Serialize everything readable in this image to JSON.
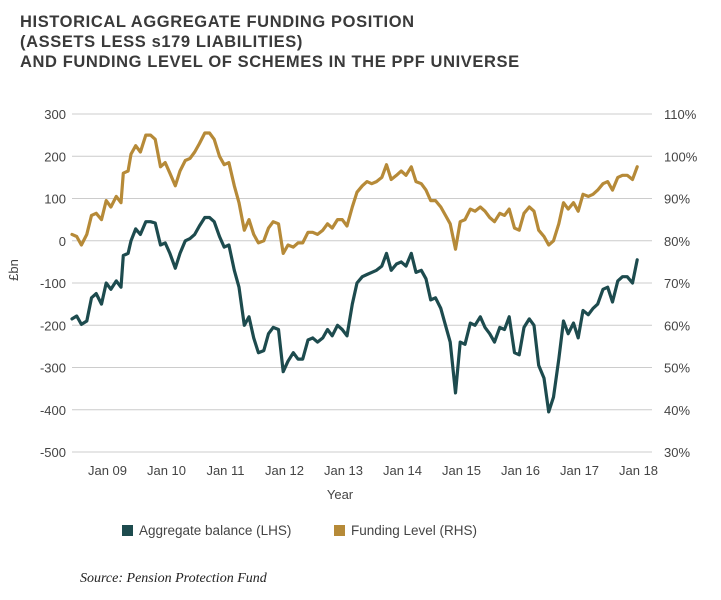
{
  "header": {
    "title_lines": [
      "HISTORICAL AGGREGATE FUNDING POSITION",
      "(ASSETS LESS s179 LIABILITIES)",
      "AND FUNDING LEVEL OF SCHEMES IN THE PPF UNIVERSE"
    ]
  },
  "source": "Source: Pension Protection Fund",
  "colors": {
    "balance": "#1d4b4e",
    "funding": "#b68a38",
    "grid": "#cccccc"
  },
  "chart_data": {
    "type": "line",
    "title": "HISTORICAL AGGREGATE FUNDING POSITION (ASSETS LESS s179 LIABILITIES) AND FUNDING LEVEL OF SCHEMES IN THE PPF UNIVERSE",
    "xlabel": "Year",
    "ylabel": "£bn",
    "x_ticks": [
      "Jan 09",
      "Jan 10",
      "Jan 11",
      "Jan 12",
      "Jan 13",
      "Jan 14",
      "Jan 15",
      "Jan 16",
      "Jan 17",
      "Jan 18"
    ],
    "x_range": [
      2008.5,
      2018.33
    ],
    "y_left": {
      "min": -500,
      "max": 300,
      "ticks": [
        "300",
        "200",
        "100",
        "0",
        "-100",
        "-200",
        "-300",
        "-400",
        "-500"
      ]
    },
    "y_right": {
      "min": 30,
      "max": 110,
      "ticks": [
        "110%",
        "100%",
        "90%",
        "80%",
        "70%",
        "60%",
        "50%",
        "40%",
        "30%"
      ]
    },
    "grid": true,
    "legend_position": "bottom",
    "series": [
      {
        "name": "Aggregate balance (LHS)",
        "axis": "left",
        "points": [
          [
            2008.5,
            -185
          ],
          [
            2008.58,
            -178
          ],
          [
            2008.66,
            -198
          ],
          [
            2008.75,
            -190
          ],
          [
            2008.83,
            -135
          ],
          [
            2008.91,
            -125
          ],
          [
            2009.0,
            -150
          ],
          [
            2009.08,
            -100
          ],
          [
            2009.16,
            -115
          ],
          [
            2009.25,
            -95
          ],
          [
            2009.33,
            -110
          ],
          [
            2009.37,
            -35
          ],
          [
            2009.45,
            -30
          ],
          [
            2009.5,
            0
          ],
          [
            2009.58,
            28
          ],
          [
            2009.66,
            15
          ],
          [
            2009.75,
            45
          ],
          [
            2009.83,
            45
          ],
          [
            2009.91,
            42
          ],
          [
            2010.0,
            -10
          ],
          [
            2010.08,
            -5
          ],
          [
            2010.16,
            -30
          ],
          [
            2010.25,
            -65
          ],
          [
            2010.33,
            -30
          ],
          [
            2010.42,
            0
          ],
          [
            2010.5,
            5
          ],
          [
            2010.58,
            15
          ],
          [
            2010.66,
            35
          ],
          [
            2010.75,
            55
          ],
          [
            2010.83,
            55
          ],
          [
            2010.91,
            45
          ],
          [
            2011.0,
            10
          ],
          [
            2011.08,
            -15
          ],
          [
            2011.16,
            -10
          ],
          [
            2011.25,
            -70
          ],
          [
            2011.33,
            -110
          ],
          [
            2011.42,
            -200
          ],
          [
            2011.5,
            -180
          ],
          [
            2011.58,
            -230
          ],
          [
            2011.66,
            -265
          ],
          [
            2011.75,
            -260
          ],
          [
            2011.83,
            -220
          ],
          [
            2011.91,
            -205
          ],
          [
            2012.0,
            -210
          ],
          [
            2012.08,
            -310
          ],
          [
            2012.16,
            -285
          ],
          [
            2012.25,
            -265
          ],
          [
            2012.33,
            -280
          ],
          [
            2012.41,
            -280
          ],
          [
            2012.5,
            -235
          ],
          [
            2012.58,
            -230
          ],
          [
            2012.66,
            -240
          ],
          [
            2012.75,
            -230
          ],
          [
            2012.83,
            -210
          ],
          [
            2012.91,
            -225
          ],
          [
            2013.0,
            -200
          ],
          [
            2013.08,
            -210
          ],
          [
            2013.16,
            -225
          ],
          [
            2013.25,
            -150
          ],
          [
            2013.33,
            -100
          ],
          [
            2013.42,
            -85
          ],
          [
            2013.5,
            -80
          ],
          [
            2013.58,
            -75
          ],
          [
            2013.66,
            -70
          ],
          [
            2013.75,
            -60
          ],
          [
            2013.83,
            -30
          ],
          [
            2013.91,
            -70
          ],
          [
            2014.0,
            -55
          ],
          [
            2014.08,
            -50
          ],
          [
            2014.16,
            -60
          ],
          [
            2014.25,
            -30
          ],
          [
            2014.33,
            -75
          ],
          [
            2014.42,
            -70
          ],
          [
            2014.5,
            -90
          ],
          [
            2014.58,
            -140
          ],
          [
            2014.66,
            -135
          ],
          [
            2014.75,
            -160
          ],
          [
            2014.83,
            -200
          ],
          [
            2014.91,
            -240
          ],
          [
            2015.0,
            -360
          ],
          [
            2015.08,
            -240
          ],
          [
            2015.16,
            -245
          ],
          [
            2015.25,
            -195
          ],
          [
            2015.33,
            -200
          ],
          [
            2015.42,
            -180
          ],
          [
            2015.5,
            -205
          ],
          [
            2015.58,
            -220
          ],
          [
            2015.66,
            -240
          ],
          [
            2015.75,
            -205
          ],
          [
            2015.83,
            -210
          ],
          [
            2015.91,
            -180
          ],
          [
            2016.0,
            -265
          ],
          [
            2016.08,
            -270
          ],
          [
            2016.16,
            -205
          ],
          [
            2016.25,
            -185
          ],
          [
            2016.33,
            -200
          ],
          [
            2016.41,
            -295
          ],
          [
            2016.5,
            -325
          ],
          [
            2016.58,
            -405
          ],
          [
            2016.66,
            -370
          ],
          [
            2016.75,
            -280
          ],
          [
            2016.83,
            -190
          ],
          [
            2016.91,
            -220
          ],
          [
            2017.0,
            -195
          ],
          [
            2017.08,
            -230
          ],
          [
            2017.16,
            -165
          ],
          [
            2017.25,
            -175
          ],
          [
            2017.33,
            -160
          ],
          [
            2017.41,
            -150
          ],
          [
            2017.5,
            -115
          ],
          [
            2017.58,
            -110
          ],
          [
            2017.66,
            -145
          ],
          [
            2017.75,
            -95
          ],
          [
            2017.83,
            -85
          ],
          [
            2017.91,
            -85
          ],
          [
            2018.0,
            -100
          ],
          [
            2018.08,
            -45
          ]
        ]
      },
      {
        "name": "Funding Level (RHS)",
        "axis": "right",
        "points": [
          [
            2008.5,
            81.5
          ],
          [
            2008.58,
            81.0
          ],
          [
            2008.66,
            79.0
          ],
          [
            2008.75,
            81.5
          ],
          [
            2008.83,
            86.0
          ],
          [
            2008.91,
            86.5
          ],
          [
            2009.0,
            85.0
          ],
          [
            2009.08,
            89.5
          ],
          [
            2009.16,
            88.0
          ],
          [
            2009.25,
            90.5
          ],
          [
            2009.33,
            89.0
          ],
          [
            2009.37,
            96.0
          ],
          [
            2009.45,
            96.5
          ],
          [
            2009.5,
            100.5
          ],
          [
            2009.58,
            102.5
          ],
          [
            2009.66,
            101.0
          ],
          [
            2009.75,
            105.0
          ],
          [
            2009.83,
            105.0
          ],
          [
            2009.91,
            104.0
          ],
          [
            2010.0,
            97.5
          ],
          [
            2010.08,
            98.5
          ],
          [
            2010.16,
            96.0
          ],
          [
            2010.25,
            93.0
          ],
          [
            2010.33,
            96.5
          ],
          [
            2010.42,
            99.0
          ],
          [
            2010.5,
            99.5
          ],
          [
            2010.58,
            101.0
          ],
          [
            2010.66,
            103.0
          ],
          [
            2010.75,
            105.5
          ],
          [
            2010.83,
            105.5
          ],
          [
            2010.91,
            104.0
          ],
          [
            2011.0,
            100.0
          ],
          [
            2011.08,
            98.0
          ],
          [
            2011.16,
            98.5
          ],
          [
            2011.25,
            93.0
          ],
          [
            2011.33,
            89.0
          ],
          [
            2011.42,
            82.5
          ],
          [
            2011.5,
            85.0
          ],
          [
            2011.58,
            81.5
          ],
          [
            2011.66,
            79.5
          ],
          [
            2011.75,
            80.0
          ],
          [
            2011.83,
            83.0
          ],
          [
            2011.91,
            84.5
          ],
          [
            2012.0,
            84.0
          ],
          [
            2012.08,
            77.0
          ],
          [
            2012.16,
            79.0
          ],
          [
            2012.25,
            78.5
          ],
          [
            2012.33,
            79.5
          ],
          [
            2012.41,
            79.5
          ],
          [
            2012.5,
            82.0
          ],
          [
            2012.58,
            82.0
          ],
          [
            2012.66,
            81.5
          ],
          [
            2012.75,
            82.5
          ],
          [
            2012.83,
            84.0
          ],
          [
            2012.91,
            83.0
          ],
          [
            2013.0,
            85.0
          ],
          [
            2013.08,
            85.0
          ],
          [
            2013.16,
            83.5
          ],
          [
            2013.25,
            88.0
          ],
          [
            2013.33,
            91.5
          ],
          [
            2013.42,
            93.0
          ],
          [
            2013.5,
            94.0
          ],
          [
            2013.58,
            93.5
          ],
          [
            2013.66,
            94.0
          ],
          [
            2013.75,
            95.0
          ],
          [
            2013.83,
            98.0
          ],
          [
            2013.91,
            94.5
          ],
          [
            2014.0,
            95.5
          ],
          [
            2014.08,
            96.5
          ],
          [
            2014.16,
            95.5
          ],
          [
            2014.25,
            97.5
          ],
          [
            2014.33,
            94.0
          ],
          [
            2014.42,
            93.5
          ],
          [
            2014.5,
            92.0
          ],
          [
            2014.58,
            89.5
          ],
          [
            2014.66,
            89.5
          ],
          [
            2014.75,
            88.0
          ],
          [
            2014.83,
            86.0
          ],
          [
            2014.91,
            84.0
          ],
          [
            2015.0,
            78.0
          ],
          [
            2015.08,
            84.5
          ],
          [
            2015.16,
            85.0
          ],
          [
            2015.25,
            87.5
          ],
          [
            2015.33,
            87.0
          ],
          [
            2015.42,
            88.0
          ],
          [
            2015.5,
            87.0
          ],
          [
            2015.58,
            85.5
          ],
          [
            2015.66,
            84.5
          ],
          [
            2015.75,
            86.5
          ],
          [
            2015.83,
            86.0
          ],
          [
            2015.91,
            87.5
          ],
          [
            2016.0,
            83.0
          ],
          [
            2016.08,
            82.5
          ],
          [
            2016.16,
            86.5
          ],
          [
            2016.25,
            88.0
          ],
          [
            2016.33,
            87.0
          ],
          [
            2016.41,
            82.5
          ],
          [
            2016.5,
            81.0
          ],
          [
            2016.58,
            79.0
          ],
          [
            2016.66,
            80.0
          ],
          [
            2016.75,
            84.0
          ],
          [
            2016.83,
            89.0
          ],
          [
            2016.91,
            87.5
          ],
          [
            2017.0,
            89.0
          ],
          [
            2017.08,
            87.0
          ],
          [
            2017.16,
            91.0
          ],
          [
            2017.25,
            90.5
          ],
          [
            2017.33,
            91.0
          ],
          [
            2017.41,
            92.0
          ],
          [
            2017.5,
            93.5
          ],
          [
            2017.58,
            94.0
          ],
          [
            2017.66,
            92.0
          ],
          [
            2017.75,
            95.0
          ],
          [
            2017.83,
            95.5
          ],
          [
            2017.91,
            95.5
          ],
          [
            2018.0,
            94.5
          ],
          [
            2018.08,
            97.5
          ]
        ]
      }
    ]
  }
}
